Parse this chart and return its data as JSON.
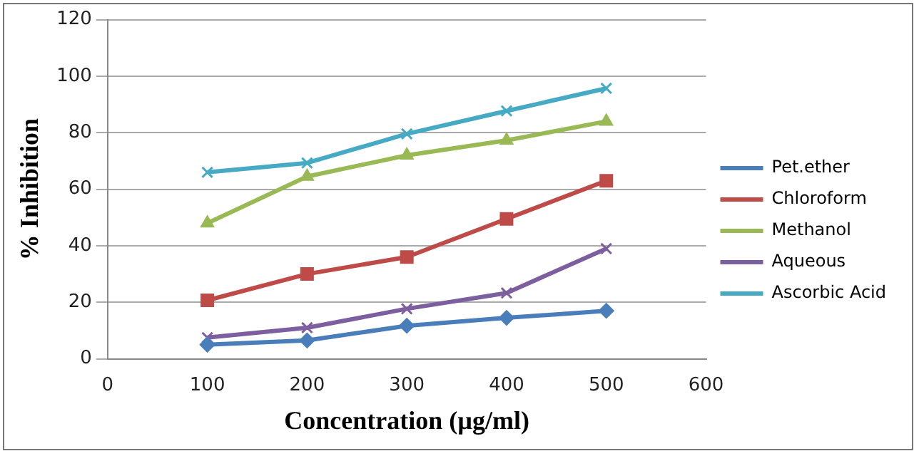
{
  "chart_data": {
    "type": "line",
    "xlabel": "Concentration (µg/ml)",
    "ylabel": "% Inhibition",
    "x": [
      100,
      200,
      300,
      400,
      500
    ],
    "xlim": [
      0,
      600
    ],
    "xticks": [
      0,
      100,
      200,
      300,
      400,
      500,
      600
    ],
    "ylim": [
      0,
      120
    ],
    "yticks": [
      0,
      20,
      40,
      60,
      80,
      100,
      120
    ],
    "grid": "y",
    "legend": "right",
    "line_style": "solid",
    "series": [
      {
        "name": "Pet.ether",
        "color": "#4a7ebb",
        "marker": "diamond",
        "values": [
          5,
          6.5,
          11.7,
          14.5,
          17
        ]
      },
      {
        "name": "Chloroform",
        "color": "#be4b48",
        "marker": "square",
        "values": [
          20.7,
          30,
          36,
          49.5,
          63
        ]
      },
      {
        "name": "Methanol",
        "color": "#98b954",
        "marker": "triangle",
        "values": [
          48,
          64.5,
          72,
          77.3,
          84
        ]
      },
      {
        "name": "Aqueous",
        "color": "#7d5fa0",
        "marker": "cross",
        "values": [
          7.5,
          11,
          17.7,
          23.3,
          39
        ]
      },
      {
        "name": "Ascorbic Acid",
        "color": "#46aac5",
        "marker": "cross",
        "values": [
          66,
          69.3,
          79.6,
          87.7,
          95.7
        ]
      }
    ]
  }
}
